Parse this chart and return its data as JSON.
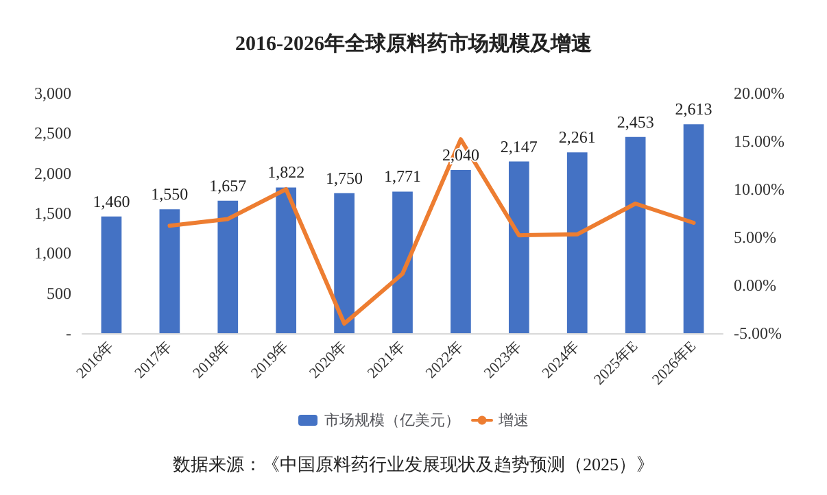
{
  "chart_data": {
    "type": "bar",
    "title": "2016-2026年全球原料药市场规模及增速",
    "categories": [
      "2016年",
      "2017年",
      "2018年",
      "2019年",
      "2020年",
      "2021年",
      "2022年",
      "2023年",
      "2024年",
      "2025年E",
      "2026年E"
    ],
    "series": [
      {
        "name": "市场规模（亿美元）",
        "color": "#4472c4",
        "values": [
          1460,
          1550,
          1657,
          1822,
          1750,
          1771,
          2040,
          2147,
          2261,
          2453,
          2613
        ],
        "value_labels": [
          "1,460",
          "1,550",
          "1,657",
          "1,822",
          "1,750",
          "1,771",
          "2,040",
          "2,147",
          "2,261",
          "2,453",
          "2,613"
        ]
      },
      {
        "name": "增速",
        "type": "line",
        "axis": "y2",
        "color": "#ed7d31",
        "values": [
          null,
          6.2,
          6.9,
          10.0,
          -4.0,
          1.2,
          15.2,
          5.2,
          5.3,
          8.5,
          6.5
        ]
      }
    ],
    "ylim": [
      0,
      3000
    ],
    "yticks": [
      {
        "value": 0,
        "label": "-"
      },
      {
        "value": 500,
        "label": "500"
      },
      {
        "value": 1000,
        "label": "1,000"
      },
      {
        "value": 1500,
        "label": "1,500"
      },
      {
        "value": 2000,
        "label": "2,000"
      },
      {
        "value": 2500,
        "label": "2,500"
      },
      {
        "value": 3000,
        "label": "3,000"
      }
    ],
    "y2lim": [
      -5,
      20
    ],
    "y2ticks": [
      {
        "value": -5,
        "label": "-5.00%"
      },
      {
        "value": 0,
        "label": "0.00%"
      },
      {
        "value": 5,
        "label": "5.00%"
      },
      {
        "value": 10,
        "label": "10.00%"
      },
      {
        "value": 15,
        "label": "15.00%"
      },
      {
        "value": 20,
        "label": "20.00%"
      }
    ],
    "grid": false,
    "legend": "bottom",
    "marker": "none",
    "line_style": "solid",
    "annotations": [
      "数据来源：《中国原料药行业发展现状及趋势预测（2025）》"
    ]
  }
}
